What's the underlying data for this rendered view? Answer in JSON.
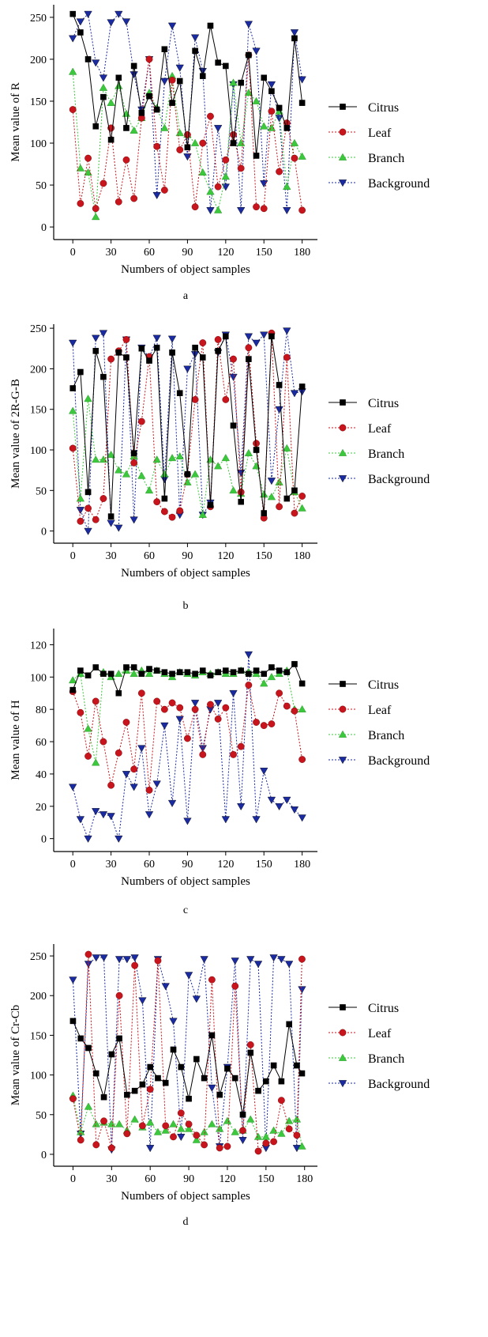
{
  "figure": {
    "x_axis_title": "Numbers of object samples",
    "legend_entries": [
      "Citrus",
      "Leaf",
      "Branch",
      "Background"
    ],
    "colors": {
      "Citrus": "#000000",
      "Leaf": "#c8141c",
      "Branch": "#3cc83c",
      "Background": "#1a2aa0"
    },
    "markers": {
      "Citrus": "square",
      "Leaf": "circle",
      "Branch": "triangle-up",
      "Background": "triangle-down"
    }
  },
  "chart_data": [
    {
      "type": "line",
      "panel_label": "a",
      "ylabel": "Mean value of R",
      "xlabel": "Numbers of object samples",
      "xlim": [
        -15,
        192
      ],
      "ylim": [
        -15,
        265
      ],
      "xticks": [
        0,
        30,
        60,
        90,
        120,
        150,
        180
      ],
      "yticks": [
        0,
        50,
        100,
        150,
        200,
        250
      ],
      "legend_position": "right",
      "x": [
        0,
        6,
        12,
        18,
        24,
        30,
        36,
        42,
        48,
        54,
        60,
        66,
        72,
        78,
        84,
        90,
        96,
        102,
        108,
        114,
        120,
        126,
        132,
        138,
        144,
        150,
        156,
        162,
        168,
        174,
        180
      ],
      "series": [
        {
          "name": "Citrus",
          "values": [
            254,
            232,
            200,
            120,
            155,
            104,
            178,
            118,
            192,
            136,
            156,
            140,
            212,
            148,
            174,
            95,
            210,
            180,
            240,
            196,
            192,
            100,
            172,
            205,
            85,
            178,
            162,
            142,
            118,
            225,
            148
          ]
        },
        {
          "name": "Leaf",
          "values": [
            140,
            28,
            82,
            22,
            52,
            118,
            30,
            80,
            34,
            130,
            200,
            96,
            44,
            175,
            92,
            110,
            24,
            100,
            132,
            48,
            80,
            110,
            70,
            205,
            24,
            22,
            138,
            66,
            124,
            82,
            20
          ]
        },
        {
          "name": "Branch",
          "values": [
            185,
            70,
            65,
            12,
            166,
            148,
            168,
            135,
            115,
            130,
            160,
            142,
            118,
            180,
            112,
            110,
            100,
            65,
            42,
            20,
            60,
            172,
            100,
            160,
            150,
            120,
            118,
            138,
            48,
            100,
            84
          ]
        },
        {
          "name": "Background",
          "values": [
            225,
            245,
            254,
            196,
            178,
            244,
            254,
            245,
            182,
            140,
            200,
            38,
            174,
            240,
            190,
            84,
            226,
            186,
            20,
            118,
            48,
            170,
            20,
            242,
            210,
            52,
            170,
            130,
            20,
            232,
            176
          ]
        }
      ]
    },
    {
      "type": "line",
      "panel_label": "b",
      "ylabel": "Mean value of 2R-G-B",
      "xlabel": "Numbers of object samples",
      "xlim": [
        -15,
        192
      ],
      "ylim": [
        -15,
        255
      ],
      "xticks": [
        0,
        30,
        60,
        90,
        120,
        150,
        180
      ],
      "yticks": [
        0,
        50,
        100,
        150,
        200,
        250
      ],
      "legend_position": "right",
      "x": [
        0,
        6,
        12,
        18,
        24,
        30,
        36,
        42,
        48,
        54,
        60,
        66,
        72,
        78,
        84,
        90,
        96,
        102,
        108,
        114,
        120,
        126,
        132,
        138,
        144,
        150,
        156,
        162,
        168,
        174,
        180
      ],
      "series": [
        {
          "name": "Citrus",
          "values": [
            176,
            196,
            48,
            222,
            190,
            18,
            220,
            214,
            96,
            225,
            210,
            226,
            40,
            220,
            170,
            70,
            226,
            214,
            32,
            222,
            240,
            130,
            36,
            212,
            100,
            22,
            240,
            180,
            40,
            50,
            178
          ]
        },
        {
          "name": "Leaf",
          "values": [
            102,
            12,
            28,
            14,
            40,
            212,
            222,
            236,
            84,
            135,
            215,
            36,
            24,
            17,
            25,
            70,
            162,
            232,
            30,
            236,
            162,
            212,
            48,
            226,
            108,
            16,
            244,
            30,
            214,
            22,
            43
          ]
        },
        {
          "name": "Branch",
          "values": [
            148,
            40,
            163,
            88,
            88,
            94,
            75,
            70,
            92,
            68,
            50,
            88,
            70,
            90,
            92,
            60,
            70,
            20,
            88,
            80,
            90,
            50,
            46,
            96,
            80,
            45,
            42,
            60,
            102,
            48,
            28
          ]
        },
        {
          "name": "Background",
          "values": [
            232,
            26,
            0,
            238,
            244,
            10,
            4,
            236,
            14,
            226,
            214,
            238,
            64,
            237,
            20,
            200,
            218,
            20,
            35,
            220,
            242,
            190,
            72,
            240,
            232,
            242,
            62,
            150,
            247,
            170,
            172
          ]
        }
      ]
    },
    {
      "type": "line",
      "panel_label": "c",
      "ylabel": "Mean value of H",
      "xlabel": "Numbers of object samples",
      "xlim": [
        -15,
        192
      ],
      "ylim": [
        -8,
        130
      ],
      "xticks": [
        0,
        30,
        60,
        90,
        120,
        150,
        180
      ],
      "yticks": [
        0,
        20,
        40,
        60,
        80,
        100,
        120
      ],
      "legend_position": "right",
      "x": [
        0,
        6,
        12,
        18,
        24,
        30,
        36,
        42,
        48,
        54,
        60,
        66,
        72,
        78,
        84,
        90,
        96,
        102,
        108,
        114,
        120,
        126,
        132,
        138,
        144,
        150,
        156,
        162,
        168,
        174,
        180
      ],
      "series": [
        {
          "name": "Citrus",
          "values": [
            92,
            104,
            101,
            106,
            102,
            102,
            90,
            106,
            106,
            102,
            105,
            104,
            103,
            102,
            103,
            103,
            102,
            104,
            101,
            103,
            104,
            103,
            104,
            102,
            104,
            102,
            106,
            104,
            103,
            108,
            96
          ]
        },
        {
          "name": "Leaf",
          "values": [
            91,
            78,
            51,
            85,
            60,
            33,
            53,
            72,
            43,
            90,
            30,
            85,
            80,
            84,
            81,
            62,
            80,
            52,
            83,
            74,
            81,
            52,
            57,
            95,
            72,
            70,
            71,
            90,
            82,
            79,
            49
          ]
        },
        {
          "name": "Branch",
          "values": [
            98,
            102,
            68,
            47,
            103,
            100,
            102,
            104,
            102,
            104,
            102,
            104,
            102,
            100,
            103,
            102,
            101,
            103,
            102,
            103,
            102,
            102,
            104,
            103,
            102,
            96,
            100,
            102,
            104,
            80,
            80
          ]
        },
        {
          "name": "Background",
          "values": [
            32,
            12,
            0,
            17,
            15,
            14,
            0,
            40,
            32,
            56,
            15,
            34,
            70,
            22,
            74,
            11,
            84,
            56,
            80,
            84,
            12,
            90,
            20,
            114,
            12,
            42,
            24,
            20,
            24,
            18,
            13
          ]
        }
      ]
    },
    {
      "type": "line",
      "panel_label": "d",
      "ylabel": "Mean value of Cr-Cb",
      "xlabel": "Numbers of object samples",
      "xlim": [
        -15,
        190
      ],
      "ylim": [
        -15,
        265
      ],
      "xticks": [
        0,
        30,
        60,
        90,
        120,
        150,
        180
      ],
      "yticks": [
        0,
        50,
        100,
        150,
        200,
        250
      ],
      "legend_position": "right",
      "x": [
        0,
        6,
        12,
        18,
        24,
        30,
        36,
        42,
        48,
        54,
        60,
        66,
        72,
        78,
        84,
        90,
        96,
        102,
        108,
        114,
        120,
        126,
        132,
        138,
        144,
        150,
        156,
        162,
        168,
        174,
        178
      ],
      "series": [
        {
          "name": "Citrus",
          "values": [
            168,
            146,
            134,
            102,
            72,
            126,
            146,
            75,
            80,
            88,
            110,
            96,
            90,
            132,
            110,
            70,
            120,
            96,
            150,
            75,
            108,
            96,
            50,
            128,
            80,
            92,
            112,
            92,
            164,
            112,
            102
          ]
        },
        {
          "name": "Leaf",
          "values": [
            70,
            18,
            252,
            12,
            42,
            8,
            200,
            26,
            238,
            36,
            82,
            244,
            36,
            22,
            52,
            38,
            24,
            12,
            220,
            8,
            10,
            212,
            30,
            138,
            4,
            14,
            16,
            68,
            32,
            24,
            246
          ]
        },
        {
          "name": "Branch",
          "values": [
            74,
            28,
            60,
            38,
            40,
            38,
            38,
            30,
            44,
            34,
            40,
            28,
            30,
            38,
            32,
            32,
            18,
            28,
            38,
            32,
            42,
            28,
            30,
            44,
            22,
            22,
            30,
            26,
            42,
            44,
            10
          ]
        },
        {
          "name": "Background",
          "values": [
            220,
            26,
            240,
            248,
            248,
            6,
            246,
            246,
            248,
            194,
            8,
            246,
            212,
            168,
            22,
            226,
            196,
            246,
            84,
            10,
            110,
            244,
            18,
            246,
            240,
            8,
            248,
            246,
            240,
            8,
            208
          ]
        }
      ]
    }
  ]
}
